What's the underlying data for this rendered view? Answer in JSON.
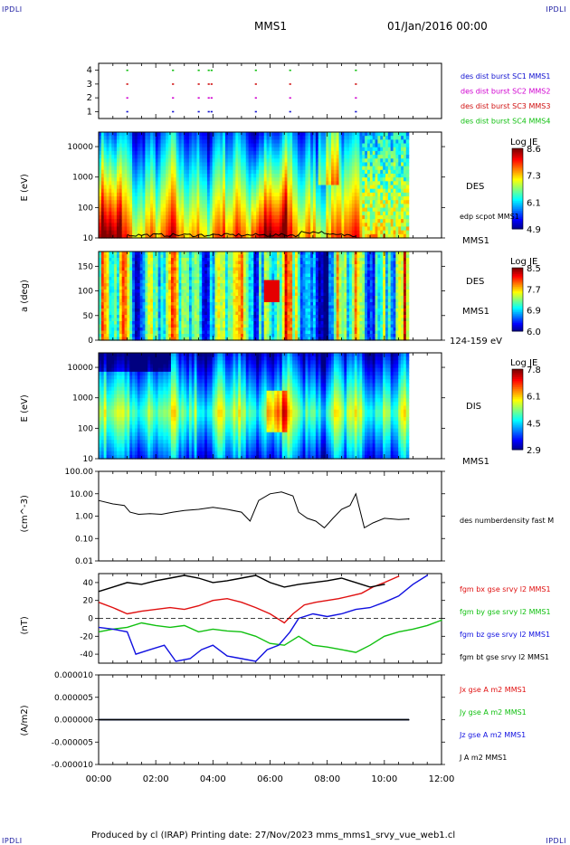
{
  "header": {
    "corner_tl": "IPDLI",
    "corner_tr": "IPDLI",
    "corner_bl": "IPDLI",
    "corner_br": "IPDLI",
    "spacecraft": "MMS1",
    "datetime": "01/Jan/2016 00:00"
  },
  "footer": {
    "text": "Produced by cl (IRAP)   Printing date: 27/Nov/2023   mms_mms1_srvy_vue_web1.cl"
  },
  "chart_data": [
    {
      "id": "burst",
      "type": "scatter",
      "y_ticks": [
        "1",
        "2",
        "3",
        "4"
      ],
      "ylim": [
        0.5,
        4.5
      ],
      "xlim_hours": [
        0,
        12
      ],
      "series": [
        {
          "name": "des dist burst SC1 MMS1",
          "color": "#1010d0",
          "level": 1,
          "x": [
            1.0,
            2.6,
            3.5,
            3.85,
            3.95,
            5.5,
            6.7,
            9.0
          ]
        },
        {
          "name": "des dist burst SC2 MMS2",
          "color": "#d000d0",
          "level": 2,
          "x": [
            1.0,
            2.6,
            3.5,
            3.85,
            3.95,
            5.5,
            6.7,
            9.0
          ]
        },
        {
          "name": "des dist burst SC3 MMS3",
          "color": "#d01010",
          "level": 3,
          "x": [
            1.0,
            2.6,
            3.5,
            3.85,
            3.95,
            5.5,
            6.7,
            9.0
          ]
        },
        {
          "name": "des dist burst SC4 MMS4",
          "color": "#10c010",
          "level": 4,
          "x": [
            1.0,
            2.6,
            3.5,
            3.85,
            3.95,
            5.5,
            6.7,
            9.0
          ]
        }
      ]
    },
    {
      "id": "des_energy",
      "type": "heatmap",
      "ylabel": "E (eV)",
      "y_scale": "log",
      "y_ticks": [
        "10",
        "100",
        "1000",
        "10000"
      ],
      "ylim": [
        10,
        30000
      ],
      "colorbar": {
        "title": "Log JE",
        "ticks": [
          "8.6",
          "7.3",
          "6.1",
          "4.9"
        ],
        "range": [
          4.9,
          8.6
        ]
      },
      "right_labels": [
        "DES",
        "MMS1"
      ],
      "overlay_label": "edp scpot MMS1",
      "data_end_hours": 10.85
    },
    {
      "id": "des_pitch",
      "type": "heatmap",
      "ylabel": "a (deg)",
      "y_ticks": [
        "0",
        "50",
        "100",
        "150"
      ],
      "ylim": [
        0,
        180
      ],
      "colorbar": {
        "title": "Log JE",
        "ticks": [
          "8.5",
          "7.7",
          "6.9",
          "6.0"
        ],
        "range": [
          6.0,
          8.5
        ]
      },
      "right_labels": [
        "DES",
        "MMS1",
        "124-159 eV"
      ],
      "data_end_hours": 10.85
    },
    {
      "id": "dis_energy",
      "type": "heatmap",
      "ylabel": "E (eV)",
      "y_scale": "log",
      "y_ticks": [
        "10",
        "100",
        "1000",
        "10000"
      ],
      "ylim": [
        10,
        30000
      ],
      "colorbar": {
        "title": "Log JE",
        "ticks": [
          "7.8",
          "6.1",
          "4.5",
          "2.9"
        ],
        "range": [
          2.9,
          7.8
        ]
      },
      "right_labels": [
        "DIS",
        "MMS1"
      ],
      "data_end_hours": 10.85
    },
    {
      "id": "density",
      "type": "line",
      "ylabel": "(cm^-3)",
      "y_scale": "log",
      "y_ticks": [
        "0.01",
        "0.10",
        "1.00",
        "10.00",
        "100.00"
      ],
      "ylim": [
        0.01,
        100
      ],
      "series": [
        {
          "name": "des numberdensity fast M",
          "color": "#000000",
          "x": [
            0.0,
            0.5,
            0.9,
            1.1,
            1.4,
            1.8,
            2.2,
            2.6,
            3.0,
            3.5,
            4.0,
            4.5,
            5.0,
            5.3,
            5.6,
            6.0,
            6.4,
            6.8,
            7.0,
            7.3,
            7.6,
            7.9,
            8.2,
            8.5,
            8.8,
            9.0,
            9.3,
            9.6,
            10.0,
            10.5,
            10.85
          ],
          "y": [
            5.0,
            3.5,
            3.0,
            1.5,
            1.2,
            1.3,
            1.2,
            1.5,
            1.8,
            2.0,
            2.5,
            2.0,
            1.5,
            0.6,
            5.0,
            10.0,
            12.0,
            8.0,
            1.5,
            0.8,
            0.6,
            0.3,
            0.8,
            2.0,
            3.0,
            10.0,
            0.3,
            0.5,
            0.8,
            0.7,
            0.75
          ]
        }
      ]
    },
    {
      "id": "bfield",
      "type": "line",
      "ylabel": "(nT)",
      "y_ticks": [
        "-40",
        "-20",
        "0",
        "20",
        "40"
      ],
      "ylim": [
        -50,
        50
      ],
      "series": [
        {
          "name": "fgm bx gse srvy l2 MMS1",
          "color": "#e01010",
          "x": [
            0.0,
            0.5,
            1.0,
            1.5,
            2.0,
            2.5,
            3.0,
            3.5,
            4.0,
            4.5,
            5.0,
            5.5,
            6.0,
            6.5,
            6.8,
            7.2,
            7.6,
            8.0,
            8.4,
            8.8,
            9.2,
            9.6,
            10.0,
            10.5
          ],
          "y": [
            18,
            12,
            5,
            8,
            10,
            12,
            10,
            14,
            20,
            22,
            18,
            12,
            5,
            -5,
            5,
            15,
            18,
            20,
            22,
            25,
            28,
            35,
            40,
            47
          ]
        },
        {
          "name": "fgm by gse srvy l2 MMS1",
          "color": "#10c010",
          "x": [
            0.0,
            0.5,
            1.0,
            1.5,
            2.0,
            2.5,
            3.0,
            3.5,
            4.0,
            4.5,
            5.0,
            5.5,
            6.0,
            6.5,
            7.0,
            7.5,
            8.0,
            8.5,
            9.0,
            9.5,
            10.0,
            10.5,
            11.0,
            11.5,
            12.0
          ],
          "y": [
            -15,
            -12,
            -10,
            -5,
            -8,
            -10,
            -8,
            -15,
            -12,
            -14,
            -15,
            -20,
            -28,
            -30,
            -20,
            -30,
            -32,
            -35,
            -38,
            -30,
            -20,
            -15,
            -12,
            -8,
            -2
          ]
        },
        {
          "name": "fgm bz gse srvy l2 MMS1",
          "color": "#1010e0",
          "x": [
            0.0,
            0.5,
            1.0,
            1.3,
            1.8,
            2.3,
            2.7,
            3.2,
            3.6,
            4.0,
            4.5,
            5.0,
            5.5,
            5.9,
            6.3,
            6.7,
            7.0,
            7.5,
            8.0,
            8.5,
            9.0,
            9.5,
            10.0,
            10.5,
            11.0,
            11.5
          ],
          "y": [
            -10,
            -12,
            -15,
            -40,
            -35,
            -30,
            -48,
            -45,
            -35,
            -30,
            -42,
            -45,
            -48,
            -35,
            -30,
            -15,
            0,
            5,
            2,
            5,
            10,
            12,
            18,
            25,
            38,
            48
          ]
        },
        {
          "name": "fgm bt gse srvy l2 MMS1",
          "color": "#000000",
          "x": [
            0.0,
            0.5,
            1.0,
            1.5,
            2.0,
            2.5,
            3.0,
            3.5,
            4.0,
            4.5,
            5.0,
            5.5,
            6.0,
            6.5,
            7.0,
            7.5,
            8.0,
            8.5,
            9.0,
            9.5,
            10.0
          ],
          "y": [
            30,
            35,
            40,
            38,
            42,
            45,
            48,
            45,
            40,
            42,
            45,
            48,
            40,
            35,
            38,
            40,
            42,
            45,
            40,
            35,
            38
          ]
        }
      ]
    },
    {
      "id": "current",
      "type": "line",
      "ylabel": "(A/m2)",
      "y_ticks": [
        "-0.000010",
        "-0.000005",
        "0.000000",
        "0.000005",
        "0.000010"
      ],
      "ylim": [
        -1e-05,
        1e-05
      ],
      "series": [
        {
          "name": "Jx gse A m2 MMS1",
          "color": "#e01010",
          "x": [
            0,
            10.85
          ],
          "y": [
            0,
            0
          ]
        },
        {
          "name": "Jy gse A m2 MMS1",
          "color": "#10c010",
          "x": [
            0,
            10.85
          ],
          "y": [
            0,
            0
          ]
        },
        {
          "name": "Jz gse A m2 MMS1",
          "color": "#1010e0",
          "x": [
            0,
            10.85
          ],
          "y": [
            0,
            0
          ]
        },
        {
          "name": "J A m2 MMS1",
          "color": "#000000",
          "x": [
            0,
            10.85
          ],
          "y": [
            0,
            0
          ]
        }
      ]
    }
  ],
  "time_axis": {
    "ticks": [
      "00:00",
      "02:00",
      "04:00",
      "06:00",
      "08:00",
      "10:00",
      "12:00"
    ],
    "range_hours": [
      0,
      12
    ]
  }
}
